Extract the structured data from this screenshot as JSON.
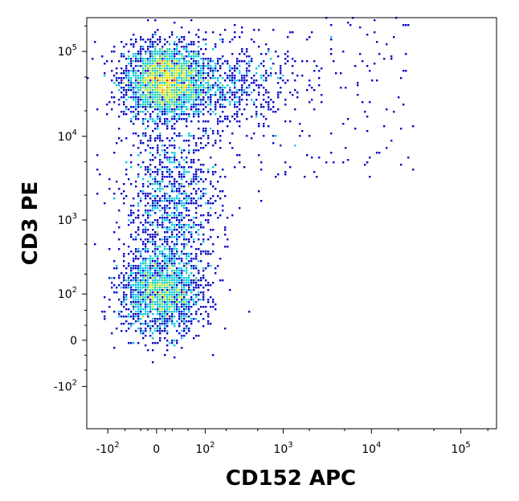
{
  "chart_data": {
    "type": "scatter",
    "style": "flow cytometry density plot (pseudocolor)",
    "scale": "biexponential",
    "xlabel": "CD152 APC",
    "ylabel": "CD3 PE",
    "x_ticks": [
      {
        "base": "-10",
        "exp": "2",
        "value": -100
      },
      {
        "base": "0",
        "exp": "",
        "value": 0
      },
      {
        "base": "10",
        "exp": "2",
        "value": 100
      },
      {
        "base": "10",
        "exp": "3",
        "value": 1000
      },
      {
        "base": "10",
        "exp": "4",
        "value": 10000
      },
      {
        "base": "10",
        "exp": "5",
        "value": 100000
      }
    ],
    "y_ticks": [
      {
        "base": "-10",
        "exp": "2",
        "value": -100
      },
      {
        "base": "0",
        "exp": "",
        "value": 0
      },
      {
        "base": "10",
        "exp": "2",
        "value": 100
      },
      {
        "base": "10",
        "exp": "3",
        "value": 1000
      },
      {
        "base": "10",
        "exp": "4",
        "value": 10000
      },
      {
        "base": "10",
        "exp": "5",
        "value": 100000
      }
    ],
    "xlim": [
      -200,
      250000
    ],
    "ylim": [
      -400,
      250000
    ],
    "grid": false,
    "density_colormap": [
      "#0000c8",
      "#0064ff",
      "#00c8e6",
      "#3cd28c",
      "#b4e632",
      "#ffe600",
      "#ff9600",
      "#ff1e00"
    ],
    "populations": [
      {
        "name": "",
        "x_center": 10,
        "y_center": 45000,
        "density": "high"
      },
      {
        "name": "",
        "x_center": 5,
        "y_center": 100,
        "density": "medium"
      },
      {
        "name": "",
        "x_center": 30,
        "y_center": 2000,
        "density": "low"
      }
    ]
  }
}
